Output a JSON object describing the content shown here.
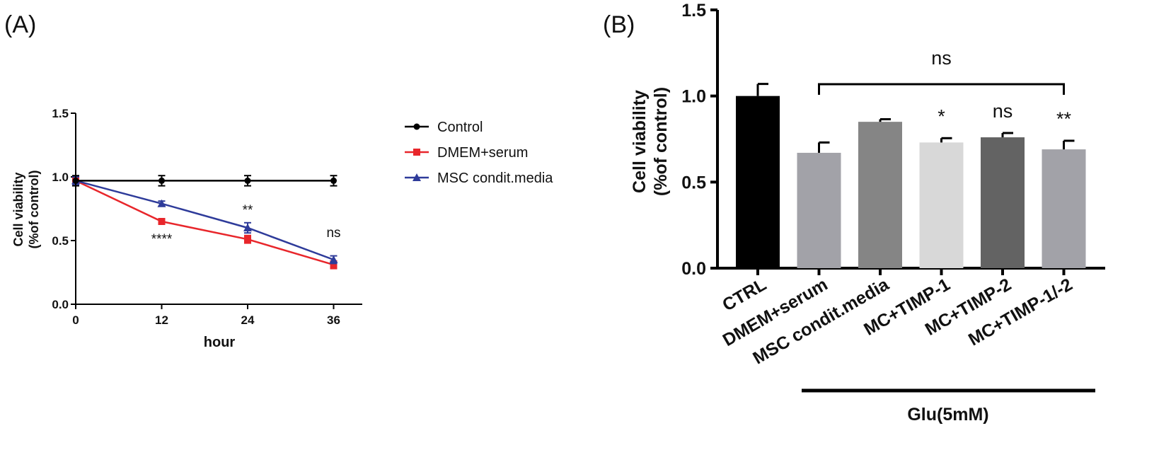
{
  "panel_a_label": "(A)",
  "panel_b_label": "(B)",
  "chart_data": [
    {
      "type": "line",
      "panel": "(A)",
      "title": "",
      "xlabel": "hour",
      "ylabel_line1": "Cell viability",
      "ylabel_line2": "(%of control)",
      "x": [
        0,
        12,
        24,
        36
      ],
      "x_ticks": [
        "0",
        "12",
        "24",
        "36"
      ],
      "xlim": [
        0,
        40
      ],
      "ylim": [
        0,
        1.5
      ],
      "y_ticks": [
        "0.0",
        "0.5",
        "1.0",
        "1.5"
      ],
      "series": [
        {
          "name": "Control",
          "color": "#000000",
          "marker": "circle",
          "values": [
            0.97,
            0.97,
            0.97,
            0.97
          ],
          "errors": [
            0.04,
            0.04,
            0.04,
            0.04
          ]
        },
        {
          "name": "DMEM+serum",
          "color": "#e8262b",
          "marker": "square",
          "values": [
            0.97,
            0.65,
            0.51,
            0.31
          ],
          "errors": [
            0.03,
            0.02,
            0.03,
            0.03
          ]
        },
        {
          "name": "MSC condit.media",
          "color": "#2e3b9a",
          "marker": "triangle",
          "values": [
            0.97,
            0.79,
            0.6,
            0.35
          ],
          "errors": [
            0.03,
            0.02,
            0.04,
            0.03
          ]
        }
      ],
      "legend_position": "right",
      "annotations": [
        {
          "x": 12,
          "y": 0.51,
          "text": "****"
        },
        {
          "x": 24,
          "y": 0.74,
          "text": "**"
        },
        {
          "x": 36,
          "y": 0.56,
          "text": "ns"
        }
      ]
    },
    {
      "type": "bar",
      "panel": "(B)",
      "title": "",
      "xlabel": "Glu(5mM)",
      "ylabel_line1": "Cell viability",
      "ylabel_line2": "(%of control)",
      "categories": [
        "CTRL",
        "DMEM+serum",
        "MSC condit.media",
        "MC+TIMP-1",
        "MC+TIMP-2",
        "MC+TIMP-1/-2"
      ],
      "values": [
        1.0,
        0.67,
        0.85,
        0.73,
        0.76,
        0.69
      ],
      "errors": [
        0.07,
        0.06,
        0.015,
        0.025,
        0.025,
        0.05
      ],
      "colors": [
        "#000000",
        "#a2a2a8",
        "#858585",
        "#d8d8d8",
        "#636363",
        "#a2a2a8"
      ],
      "ylim": [
        0,
        1.5
      ],
      "y_ticks": [
        "0.0",
        "0.5",
        "1.0",
        "1.5"
      ],
      "significance": [
        "",
        "",
        "",
        "*",
        "ns",
        "**"
      ],
      "bracket": {
        "from": "DMEM+serum",
        "to": "MC+TIMP-1/-2",
        "label": "ns"
      }
    }
  ]
}
